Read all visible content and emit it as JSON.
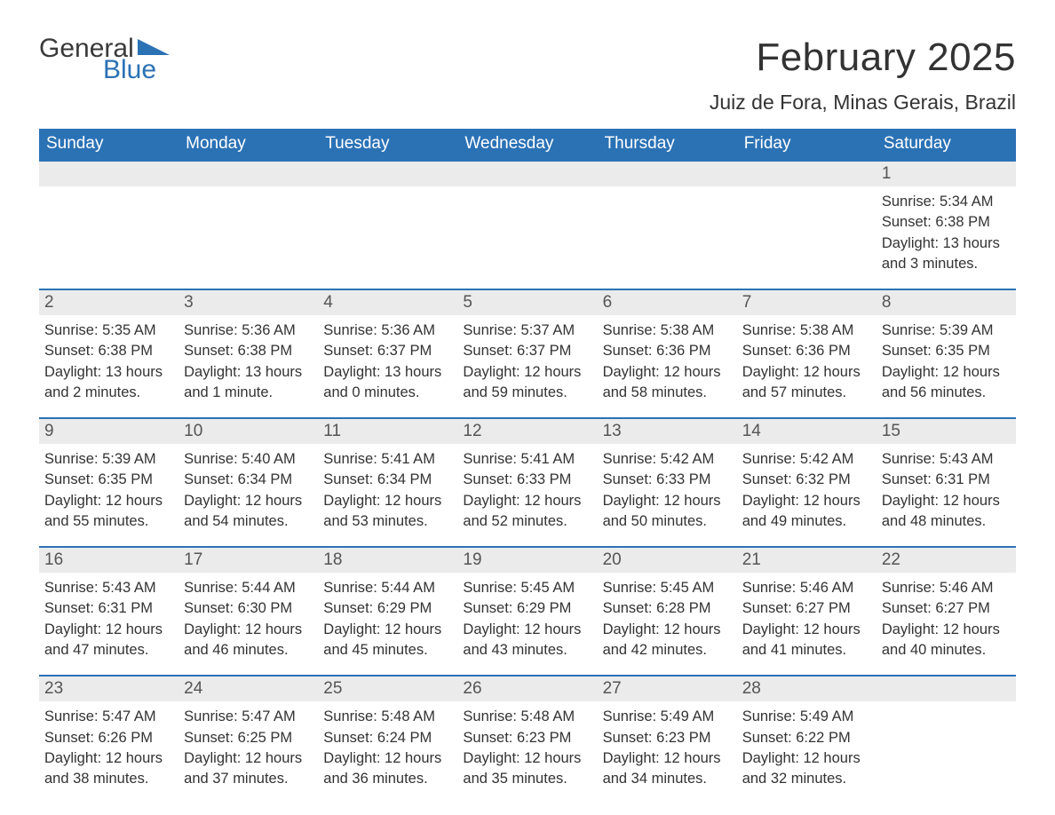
{
  "logo": {
    "text_general": "General",
    "text_blue": "Blue"
  },
  "title": "February 2025",
  "location": "Juiz de Fora, Minas Gerais, Brazil",
  "colors": {
    "brand_blue": "#2b72b5",
    "header_text": "#ffffff",
    "daynum_bg": "#ebebeb",
    "body_text": "#333333",
    "daynum_text": "#555555",
    "page_bg": "#ffffff"
  },
  "typography": {
    "title_fontsize": 44,
    "location_fontsize": 23,
    "header_fontsize": 19,
    "daynum_fontsize": 19,
    "cell_fontsize": 16.5,
    "font_family": "Arial"
  },
  "layout": {
    "columns": 7,
    "week_border_color": "#2b72b5",
    "week_border_width": 2
  },
  "day_labels": [
    "Sunday",
    "Monday",
    "Tuesday",
    "Wednesday",
    "Thursday",
    "Friday",
    "Saturday"
  ],
  "weeks": [
    {
      "daynums": [
        "",
        "",
        "",
        "",
        "",
        "",
        "1"
      ],
      "cells": [
        null,
        null,
        null,
        null,
        null,
        null,
        {
          "sunrise": "Sunrise: 5:34 AM",
          "sunset": "Sunset: 6:38 PM",
          "daylight1": "Daylight: 13 hours",
          "daylight2": "and 3 minutes."
        }
      ]
    },
    {
      "daynums": [
        "2",
        "3",
        "4",
        "5",
        "6",
        "7",
        "8"
      ],
      "cells": [
        {
          "sunrise": "Sunrise: 5:35 AM",
          "sunset": "Sunset: 6:38 PM",
          "daylight1": "Daylight: 13 hours",
          "daylight2": "and 2 minutes."
        },
        {
          "sunrise": "Sunrise: 5:36 AM",
          "sunset": "Sunset: 6:38 PM",
          "daylight1": "Daylight: 13 hours",
          "daylight2": "and 1 minute."
        },
        {
          "sunrise": "Sunrise: 5:36 AM",
          "sunset": "Sunset: 6:37 PM",
          "daylight1": "Daylight: 13 hours",
          "daylight2": "and 0 minutes."
        },
        {
          "sunrise": "Sunrise: 5:37 AM",
          "sunset": "Sunset: 6:37 PM",
          "daylight1": "Daylight: 12 hours",
          "daylight2": "and 59 minutes."
        },
        {
          "sunrise": "Sunrise: 5:38 AM",
          "sunset": "Sunset: 6:36 PM",
          "daylight1": "Daylight: 12 hours",
          "daylight2": "and 58 minutes."
        },
        {
          "sunrise": "Sunrise: 5:38 AM",
          "sunset": "Sunset: 6:36 PM",
          "daylight1": "Daylight: 12 hours",
          "daylight2": "and 57 minutes."
        },
        {
          "sunrise": "Sunrise: 5:39 AM",
          "sunset": "Sunset: 6:35 PM",
          "daylight1": "Daylight: 12 hours",
          "daylight2": "and 56 minutes."
        }
      ]
    },
    {
      "daynums": [
        "9",
        "10",
        "11",
        "12",
        "13",
        "14",
        "15"
      ],
      "cells": [
        {
          "sunrise": "Sunrise: 5:39 AM",
          "sunset": "Sunset: 6:35 PM",
          "daylight1": "Daylight: 12 hours",
          "daylight2": "and 55 minutes."
        },
        {
          "sunrise": "Sunrise: 5:40 AM",
          "sunset": "Sunset: 6:34 PM",
          "daylight1": "Daylight: 12 hours",
          "daylight2": "and 54 minutes."
        },
        {
          "sunrise": "Sunrise: 5:41 AM",
          "sunset": "Sunset: 6:34 PM",
          "daylight1": "Daylight: 12 hours",
          "daylight2": "and 53 minutes."
        },
        {
          "sunrise": "Sunrise: 5:41 AM",
          "sunset": "Sunset: 6:33 PM",
          "daylight1": "Daylight: 12 hours",
          "daylight2": "and 52 minutes."
        },
        {
          "sunrise": "Sunrise: 5:42 AM",
          "sunset": "Sunset: 6:33 PM",
          "daylight1": "Daylight: 12 hours",
          "daylight2": "and 50 minutes."
        },
        {
          "sunrise": "Sunrise: 5:42 AM",
          "sunset": "Sunset: 6:32 PM",
          "daylight1": "Daylight: 12 hours",
          "daylight2": "and 49 minutes."
        },
        {
          "sunrise": "Sunrise: 5:43 AM",
          "sunset": "Sunset: 6:31 PM",
          "daylight1": "Daylight: 12 hours",
          "daylight2": "and 48 minutes."
        }
      ]
    },
    {
      "daynums": [
        "16",
        "17",
        "18",
        "19",
        "20",
        "21",
        "22"
      ],
      "cells": [
        {
          "sunrise": "Sunrise: 5:43 AM",
          "sunset": "Sunset: 6:31 PM",
          "daylight1": "Daylight: 12 hours",
          "daylight2": "and 47 minutes."
        },
        {
          "sunrise": "Sunrise: 5:44 AM",
          "sunset": "Sunset: 6:30 PM",
          "daylight1": "Daylight: 12 hours",
          "daylight2": "and 46 minutes."
        },
        {
          "sunrise": "Sunrise: 5:44 AM",
          "sunset": "Sunset: 6:29 PM",
          "daylight1": "Daylight: 12 hours",
          "daylight2": "and 45 minutes."
        },
        {
          "sunrise": "Sunrise: 5:45 AM",
          "sunset": "Sunset: 6:29 PM",
          "daylight1": "Daylight: 12 hours",
          "daylight2": "and 43 minutes."
        },
        {
          "sunrise": "Sunrise: 5:45 AM",
          "sunset": "Sunset: 6:28 PM",
          "daylight1": "Daylight: 12 hours",
          "daylight2": "and 42 minutes."
        },
        {
          "sunrise": "Sunrise: 5:46 AM",
          "sunset": "Sunset: 6:27 PM",
          "daylight1": "Daylight: 12 hours",
          "daylight2": "and 41 minutes."
        },
        {
          "sunrise": "Sunrise: 5:46 AM",
          "sunset": "Sunset: 6:27 PM",
          "daylight1": "Daylight: 12 hours",
          "daylight2": "and 40 minutes."
        }
      ]
    },
    {
      "daynums": [
        "23",
        "24",
        "25",
        "26",
        "27",
        "28",
        ""
      ],
      "cells": [
        {
          "sunrise": "Sunrise: 5:47 AM",
          "sunset": "Sunset: 6:26 PM",
          "daylight1": "Daylight: 12 hours",
          "daylight2": "and 38 minutes."
        },
        {
          "sunrise": "Sunrise: 5:47 AM",
          "sunset": "Sunset: 6:25 PM",
          "daylight1": "Daylight: 12 hours",
          "daylight2": "and 37 minutes."
        },
        {
          "sunrise": "Sunrise: 5:48 AM",
          "sunset": "Sunset: 6:24 PM",
          "daylight1": "Daylight: 12 hours",
          "daylight2": "and 36 minutes."
        },
        {
          "sunrise": "Sunrise: 5:48 AM",
          "sunset": "Sunset: 6:23 PM",
          "daylight1": "Daylight: 12 hours",
          "daylight2": "and 35 minutes."
        },
        {
          "sunrise": "Sunrise: 5:49 AM",
          "sunset": "Sunset: 6:23 PM",
          "daylight1": "Daylight: 12 hours",
          "daylight2": "and 34 minutes."
        },
        {
          "sunrise": "Sunrise: 5:49 AM",
          "sunset": "Sunset: 6:22 PM",
          "daylight1": "Daylight: 12 hours",
          "daylight2": "and 32 minutes."
        },
        null
      ]
    }
  ]
}
